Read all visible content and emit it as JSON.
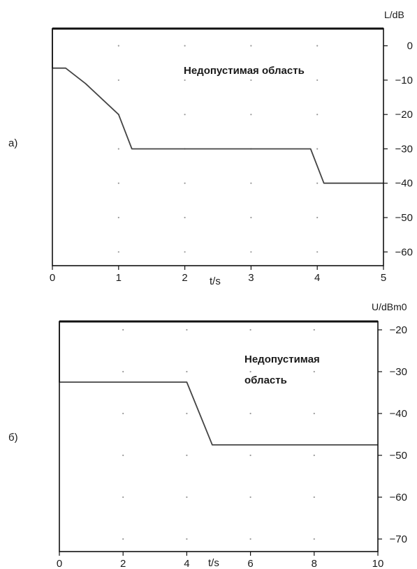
{
  "chart_data": [
    {
      "type": "line",
      "panel_label": "а)",
      "ylabel": "L/dB",
      "xlabel": "t/s",
      "xlim": [
        0,
        5
      ],
      "ylim": [
        -64,
        5
      ],
      "x_ticks": [
        0,
        1,
        2,
        3,
        4,
        5
      ],
      "y_ticks": [
        0,
        -10,
        -20,
        -30,
        -40,
        -50,
        -60
      ],
      "x_tick_labels": [
        "0",
        "1",
        "2",
        "3",
        "4",
        "5"
      ],
      "y_tick_labels": [
        "0",
        "−10",
        "−20",
        "−30",
        "−40",
        "−50",
        "−60"
      ],
      "region_label_lines": [
        "Недопустимая область"
      ],
      "grid": "dotted",
      "series": [
        {
          "x": [
            0,
            0.2,
            0.5,
            1.0,
            1.2,
            3.9,
            4.1,
            5.0
          ],
          "y": [
            -6.5,
            -6.5,
            -11,
            -20,
            -30,
            -30,
            -40,
            -40
          ]
        }
      ]
    },
    {
      "type": "line",
      "panel_label": "б)",
      "ylabel": "U/dBm0",
      "xlabel": "t/s",
      "xlim": [
        0,
        10
      ],
      "ylim": [
        -73,
        -18
      ],
      "x_ticks": [
        0,
        2,
        4,
        6,
        8,
        10
      ],
      "y_ticks": [
        -20,
        -30,
        -40,
        -50,
        -60,
        -70
      ],
      "x_tick_labels": [
        "0",
        "2",
        "4",
        "6",
        "8",
        "10"
      ],
      "y_tick_labels": [
        "−20",
        "−30",
        "−40",
        "−50",
        "−60",
        "−70"
      ],
      "region_label_lines": [
        "Недопустимая",
        "область"
      ],
      "grid": "dotted",
      "series": [
        {
          "x": [
            0,
            4.0,
            4.8,
            10.0
          ],
          "y": [
            -32.5,
            -32.5,
            -47.5,
            -47.5
          ]
        }
      ]
    }
  ]
}
